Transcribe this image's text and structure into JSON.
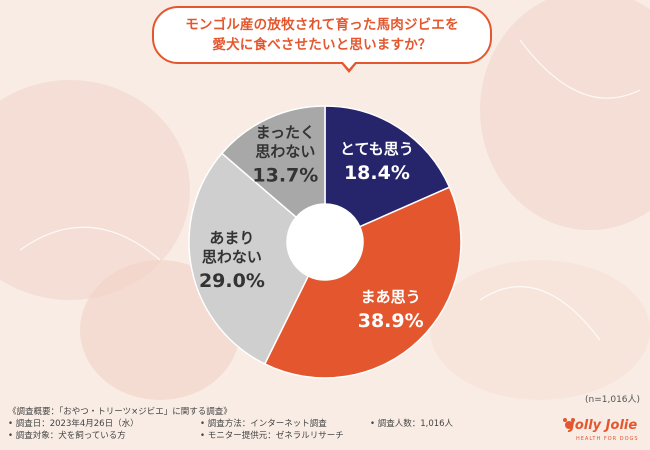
{
  "question": {
    "line1": "モンゴル産の放牧されて育った馬肉ジビエを",
    "line2": "愛犬に食べさせたいと思いますか？"
  },
  "chart_data": {
    "type": "pie",
    "donut": true,
    "title": "モンゴル産の放牧されて育った馬肉ジビエを愛犬に食べさせたいと思いますか？",
    "slices": [
      {
        "label_lines": [
          "とても思う"
        ],
        "value": 18.4,
        "display": "18.4%",
        "color": "#26246b",
        "text_color": "#ffffff"
      },
      {
        "label_lines": [
          "まあ思う"
        ],
        "value": 38.9,
        "display": "38.9%",
        "color": "#e4572e",
        "text_color": "#ffffff"
      },
      {
        "label_lines": [
          "あまり",
          "思わない"
        ],
        "value": 29.0,
        "display": "29.0%",
        "color": "#cfcfcf",
        "text_color": "#333333"
      },
      {
        "label_lines": [
          "まったく",
          "思わない"
        ],
        "value": 13.7,
        "display": "13.7%",
        "color": "#a8a8a8",
        "text_color": "#333333"
      }
    ],
    "note": "(n=1,016人)"
  },
  "footer": {
    "header": "《調査概要：「おやつ・トリーツ×ジビエ」に関する調査》",
    "date": "• 調査日：2023年4月26日（水）",
    "method": "• 調査方法：インターネット調査",
    "count": "• 調査人数：1,016人",
    "target": "• 調査対象：犬を飼っている方",
    "provider": "• モニター提供元：ゼネラルリサーチ"
  },
  "logo": {
    "name": "Jolly Jolie",
    "tagline": "HEALTH FOR DOGS"
  },
  "colors": {
    "accent": "#e4572e",
    "navy": "#26246b",
    "background": "#f8ece4"
  }
}
